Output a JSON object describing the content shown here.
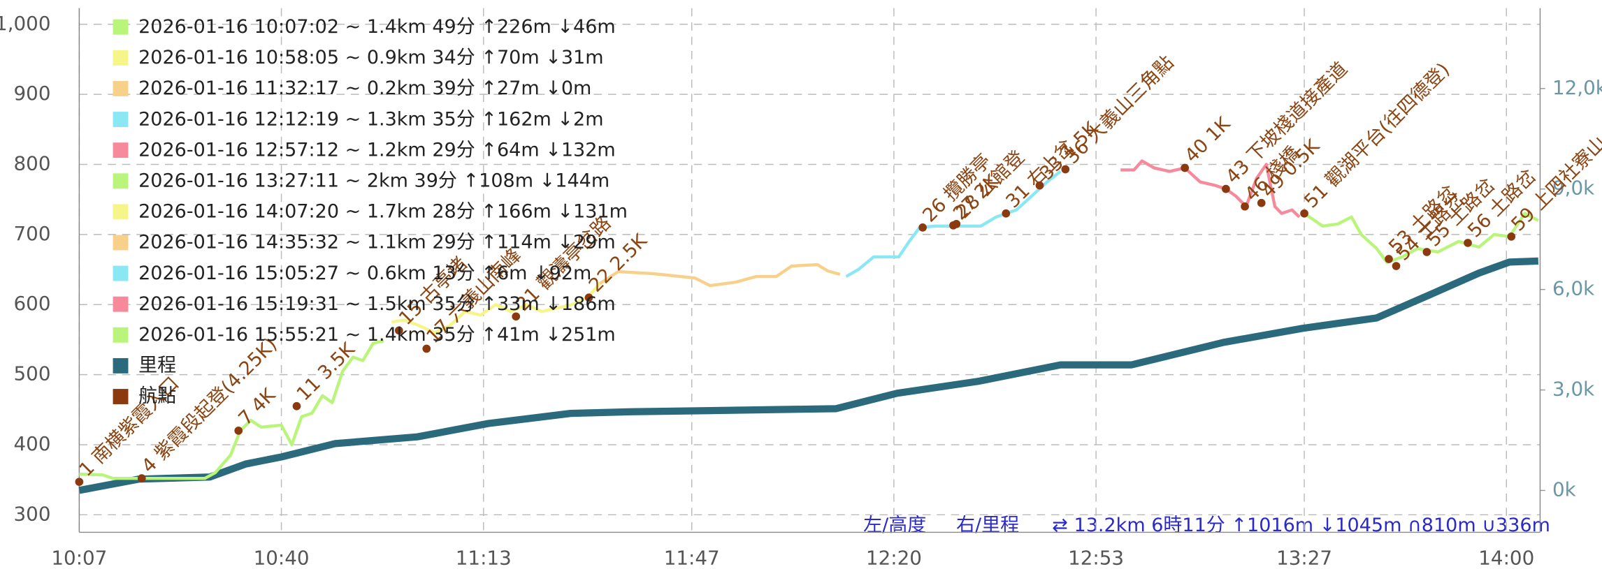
{
  "chart_data": {
    "type": "line",
    "xlim": [
      607,
      845.5
    ],
    "xticks": [
      {
        "value": 607,
        "label": "10:07"
      },
      {
        "value": 640,
        "label": "10:40"
      },
      {
        "value": 673,
        "label": "11:13"
      },
      {
        "value": 707,
        "label": "11:47"
      },
      {
        "value": 740,
        "label": "12:20"
      },
      {
        "value": 773,
        "label": "12:53"
      },
      {
        "value": 807,
        "label": "13:27"
      },
      {
        "value": 840,
        "label": "14:00"
      }
    ],
    "ylim": [
      275,
      1023
    ],
    "yticks": [
      300,
      400,
      500,
      600,
      700,
      800,
      900,
      {
        "value": 1000,
        "label": "1,000"
      }
    ],
    "y2lim": [
      -1250,
      14400
    ],
    "y2ticks": [
      {
        "value": 0,
        "label": "0k"
      },
      {
        "value": 3000,
        "label": "3,0k"
      },
      {
        "value": 6000,
        "label": "6,0k"
      },
      {
        "value": 9000,
        "label": "9,0k"
      },
      {
        "value": 12000,
        "label": "12,0k"
      }
    ],
    "grid": true,
    "series": [
      {
        "name": "2026-01-16 10:07:02 ~ 1.4km 49分 ↑226m ↓46m",
        "color": "#b9f57a",
        "x": [
          607,
          610.8,
          612.5,
          615.8,
          627.5,
          629.2,
          631.7,
          633.3,
          635,
          636.7,
          640,
          641.7,
          643.3,
          645,
          646.7,
          648.3,
          650,
          651.7,
          653.3,
          655,
          656.7
        ],
        "values": [
          358,
          357,
          352,
          352,
          352,
          360,
          385,
          420,
          435,
          425,
          428,
          400,
          440,
          445,
          470,
          460,
          505,
          525,
          520,
          545,
          548
        ]
      },
      {
        "name": "2026-01-16 10:58:05 ~ 0.9km 34分 ↑70m ↓31m",
        "color": "#f5f58a",
        "x": [
          658,
          660,
          662.5,
          665,
          667.5,
          670,
          672.5,
          675,
          677.5,
          680,
          682.5,
          685,
          687.5,
          690.2,
          692
        ],
        "values": [
          575,
          578,
          570,
          560,
          570,
          590,
          585,
          600,
          590,
          600,
          590,
          595,
          600,
          612,
          630
        ]
      },
      {
        "name": "2026-01-16 11:32:17 ~ 0.2km 39分 ↑27m ↓0m",
        "color": "#f7d08a",
        "x": [
          692,
          695,
          700.8,
          707.5,
          710,
          714.2,
          717.5,
          720.8,
          723.3,
          727.5,
          729.2,
          731.2
        ],
        "values": [
          630,
          647,
          644,
          638,
          627,
          632,
          640,
          640,
          655,
          657,
          648,
          643
        ]
      },
      {
        "name": "2026-01-16 12:12:19 ~ 1.3km 35分 ↑162m ↓2m",
        "color": "#8ae8f5",
        "x": [
          732.2,
          734.2,
          736.7,
          740.8,
          742.5,
          744.2,
          746.7,
          754.2,
          756.7,
          760,
          762.5,
          765,
          767.2
        ],
        "values": [
          640,
          650,
          668,
          668,
          690,
          710,
          712,
          712,
          725,
          735,
          755,
          775,
          790
        ]
      },
      {
        "name": "2026-01-16 12:57:12 ~ 1.2km 29分 ↑64m ↓132m",
        "color": "#f78a9a",
        "x": [
          777,
          779.2,
          780.5,
          782.5,
          785,
          787.5,
          790,
          792.5,
          794.2,
          795.8,
          797.5,
          799.2,
          800.8,
          802.2,
          803.3,
          805,
          806.2
        ],
        "values": [
          792,
          792,
          805,
          795,
          790,
          795,
          775,
          770,
          765,
          755,
          740,
          780,
          800,
          740,
          730,
          735,
          725
        ]
      },
      {
        "name": "2026-01-16 13:27:11 ~ 2km 39分 ↑108m ↓144m",
        "color": "#b9f57a",
        "x": [
          807,
          810,
          812.5,
          814.7,
          816.3,
          818.8,
          820.5,
          823,
          825.5,
          828.8,
          832.2,
          835.5,
          838,
          840.5,
          843,
          845.2
        ],
        "values": [
          730,
          712,
          715,
          725,
          700,
          680,
          660,
          668,
          680,
          675,
          690,
          682,
          700,
          697,
          730,
          720
        ]
      },
      {
        "name": "2026-01-16 14:07:20 ~ 1.7km 28分 ↑166m ↓131m",
        "color": "#f5f58a",
        "x": [],
        "values": []
      },
      {
        "name": "2026-01-16 14:35:32 ~ 1.1km 29分 ↑114m ↓29m",
        "color": "#f7d08a",
        "x": [],
        "values": []
      },
      {
        "name": "2026-01-16 15:05:27 ~ 0.6km 13分 ↑6m ↓92m",
        "color": "#8ae8f5",
        "x": [],
        "values": []
      },
      {
        "name": "2026-01-16 15:19:31 ~ 1.5km 35分 ↑33m ↓186m",
        "color": "#f78a9a",
        "x": [],
        "values": []
      },
      {
        "name": "2026-01-16 15:55:21 ~ 1.4km 35分 ↑41m ↓251m",
        "color": "#b9f57a",
        "x": [],
        "values": []
      },
      {
        "name": "里程",
        "color": "#2b6a7c",
        "axis": "y2",
        "x": [
          607,
          616.7,
          628.3,
          634.2,
          640,
          648.8,
          662.2,
          673.8,
          687.2,
          697.2,
          730.5,
          740.5,
          753.8,
          767.2,
          778.8,
          793.8,
          806.7,
          818.8,
          827.2,
          835.5,
          840.5,
          845.2
        ],
        "values": [
          0,
          335,
          400,
          790,
          1000,
          1400,
          1600,
          2000,
          2300,
          2350,
          2440,
          2900,
          3260,
          3750,
          3750,
          4420,
          4840,
          5150,
          5820,
          6490,
          6820,
          6850
        ]
      },
      {
        "name": "航點",
        "color": "#8b3a10",
        "type": "scatter",
        "x": [
          607,
          617.2,
          633,
          642.5,
          659.2,
          663.7,
          678.3,
          690.2,
          744.7,
          749.7,
          750.2,
          758.3,
          763.8,
          768,
          787.5,
          794.2,
          797.3,
          800,
          807,
          820.8,
          822,
          827,
          833.7,
          840.8
        ],
        "values": [
          347,
          352,
          420,
          455,
          563,
          537,
          583,
          610,
          710,
          713,
          715,
          730,
          770,
          793,
          795,
          765,
          740,
          745,
          730,
          665,
          655,
          675,
          688,
          697
        ],
        "labels": [
          "1 南横紫霞入口",
          "4 紫霞段起登(4.25K)",
          "7 4K",
          "11 3.5K",
          "15 古亭堵",
          "17 六義山南峰",
          "21 觀濤亭岔路",
          "22 2.5K",
          "26 攬勝亭",
          "27 2K",
          "28 公館登",
          "31 右上岔",
          "33 1.5K",
          "36 大義山三角點",
          "40 1K",
          "43 下坡棧道接產道",
          "46 棧橋",
          "49 0.5K",
          "51 觀湖平台(往四德登)",
          "53 土路岔",
          "54 土路岔",
          "55 土路岔",
          "56 土路岔",
          "59 上四社寮山"
        ]
      }
    ],
    "left_axis_note": "左/高度",
    "right_axis_note": "右/里程",
    "summary": "⇄ 13.2km 6時11分 ↑1016m ↓1045m ∩810m ∪336m"
  }
}
